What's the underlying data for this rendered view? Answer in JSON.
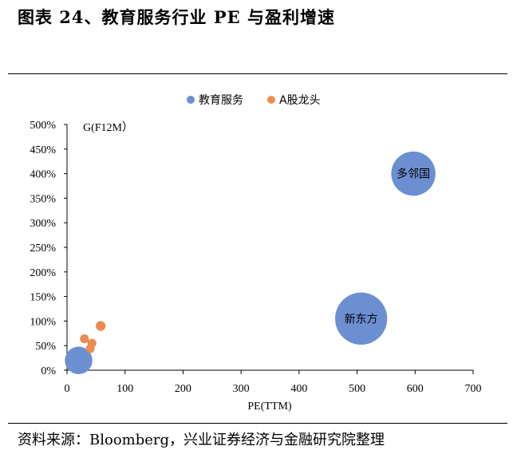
{
  "figure": {
    "title": "图表 24、教育服务行业 PE 与盈利增速",
    "source": "资料来源：Bloomberg，兴业证券经济与金融研究院整理"
  },
  "chart_data": {
    "type": "scatter",
    "subtype": "bubble",
    "title": "",
    "xlabel": "PE(TTM)",
    "ylabel": "G(F12M）",
    "xlim": [
      0,
      700
    ],
    "ylim": [
      0,
      5
    ],
    "x_ticks": [
      "0",
      "100",
      "200",
      "300",
      "400",
      "500",
      "600",
      "700"
    ],
    "y_ticks": [
      "0%",
      "50%",
      "100%",
      "150%",
      "200%",
      "250%",
      "300%",
      "350%",
      "400%",
      "450%",
      "500%"
    ],
    "legend_position": "top",
    "colors": {
      "教育服务": "#6c8fd2",
      "A股龙头": "#ed8b53"
    },
    "series": [
      {
        "name": "教育服务",
        "points": [
          {
            "label": "多邻国",
            "x": 597,
            "y": 4.0,
            "size": 0.45
          },
          {
            "label": "新东方",
            "x": 507,
            "y": 1.05,
            "size": 0.53
          },
          {
            "label": "",
            "x": 20,
            "y": 0.2,
            "size": 0.28
          },
          {
            "label": "",
            "x": 12,
            "y": 0.22,
            "size": 0.12
          },
          {
            "label": "",
            "x": 8,
            "y": 0.1,
            "size": 0.08
          },
          {
            "label": "",
            "x": 25,
            "y": 0.08,
            "size": 0.1
          }
        ]
      },
      {
        "name": "A股龙头",
        "points": [
          {
            "label": "",
            "x": 58,
            "y": 0.9,
            "size": 0.1
          },
          {
            "label": "",
            "x": 30,
            "y": 0.64,
            "size": 0.09
          },
          {
            "label": "",
            "x": 43,
            "y": 0.55,
            "size": 0.09
          },
          {
            "label": "",
            "x": 40,
            "y": 0.44,
            "size": 0.09
          }
        ]
      }
    ]
  }
}
